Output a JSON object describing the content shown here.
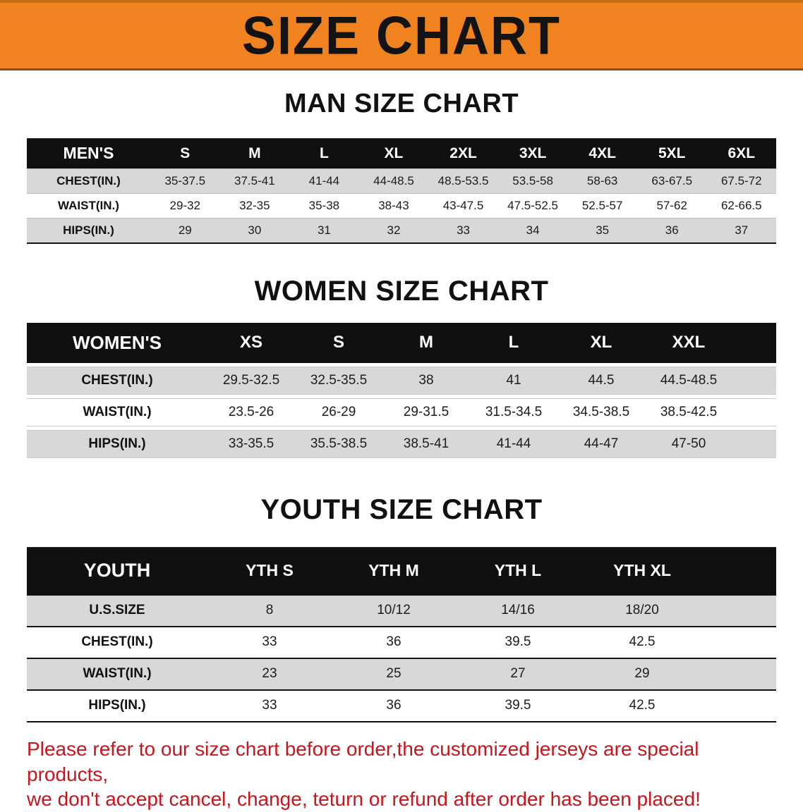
{
  "banner": {
    "title": "SIZE CHART"
  },
  "men": {
    "heading": "MAN SIZE CHART",
    "table": {
      "headers": [
        "MEN'S",
        "S",
        "M",
        "L",
        "XL",
        "2XL",
        "3XL",
        "4XL",
        "5XL",
        "6XL"
      ],
      "rows": [
        {
          "label": "CHEST(IN.)",
          "values": [
            "35-37.5",
            "37.5-41",
            "41-44",
            "44-48.5",
            "48.5-53.5",
            "53.5-58",
            "58-63",
            "63-67.5",
            "67.5-72"
          ]
        },
        {
          "label": "WAIST(IN.)",
          "values": [
            "29-32",
            "32-35",
            "35-38",
            "38-43",
            "43-47.5",
            "47.5-52.5",
            "52.5-57",
            "57-62",
            "62-66.5"
          ]
        },
        {
          "label": "HIPS(IN.)",
          "values": [
            "29",
            "30",
            "31",
            "32",
            "33",
            "34",
            "35",
            "36",
            "37"
          ]
        }
      ]
    }
  },
  "women": {
    "heading": "WOMEN SIZE CHART",
    "table": {
      "headers": [
        "WOMEN'S",
        "XS",
        "S",
        "M",
        "L",
        "XL",
        "XXL"
      ],
      "rows": [
        {
          "label": "CHEST(IN.)",
          "values": [
            "29.5-32.5",
            "32.5-35.5",
            "38",
            "41",
            "44.5",
            "44.5-48.5"
          ]
        },
        {
          "label": "WAIST(IN.)",
          "values": [
            "23.5-26",
            "26-29",
            "29-31.5",
            "31.5-34.5",
            "34.5-38.5",
            "38.5-42.5"
          ]
        },
        {
          "label": "HIPS(IN.)",
          "values": [
            "33-35.5",
            "35.5-38.5",
            "38.5-41",
            "41-44",
            "44-47",
            "47-50"
          ]
        }
      ]
    }
  },
  "youth": {
    "heading": "YOUTH SIZE CHART",
    "table": {
      "headers": [
        "YOUTH",
        "YTH S",
        "YTH M",
        "YTH L",
        "YTH XL"
      ],
      "rows": [
        {
          "label": "U.S.SIZE",
          "values": [
            "8",
            "10/12",
            "14/16",
            "18/20"
          ]
        },
        {
          "label": "CHEST(IN.)",
          "values": [
            "33",
            "36",
            "39.5",
            "42.5"
          ]
        },
        {
          "label": "WAIST(IN.)",
          "values": [
            "23",
            "25",
            "27",
            "29"
          ]
        },
        {
          "label": "HIPS(IN.)",
          "values": [
            "33",
            "36",
            "39.5",
            "42.5"
          ]
        }
      ]
    }
  },
  "disclaimer": {
    "line1": "Please refer to our size chart before order,the customized jerseys are special products,",
    "line2": "we don't accept cancel, change, teturn or refund after order has been placed!"
  },
  "colors": {
    "banner_bg": "#F0831F",
    "table_header_bg": "#101010",
    "row_shade": "#D8D8D8",
    "heading_text": "#111111",
    "value_text": "#1C1C1C",
    "disclaimer_text": "#C8151D"
  }
}
